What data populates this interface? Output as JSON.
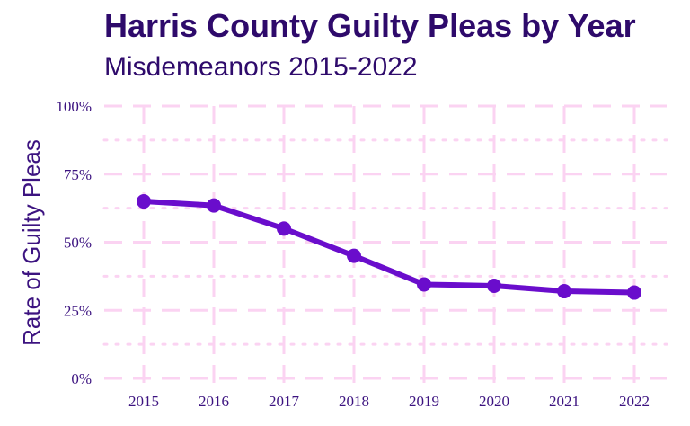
{
  "chart_data": {
    "type": "line",
    "title": "Harris County Guilty Pleas by Year",
    "subtitle": "Misdemeanors 2015-2022",
    "xlabel": "",
    "ylabel": "Rate of Guilty Pleas",
    "x": [
      "2015",
      "2016",
      "2017",
      "2018",
      "2019",
      "2020",
      "2021",
      "2022"
    ],
    "series": [
      {
        "values": [
          0.65,
          0.635,
          0.55,
          0.45,
          0.345,
          0.34,
          0.32,
          0.315
        ]
      }
    ],
    "ylim": [
      0,
      1
    ],
    "yticks": [
      {
        "value": 0,
        "label": "0%"
      },
      {
        "value": 0.25,
        "label": "25%"
      },
      {
        "value": 0.5,
        "label": "50%"
      },
      {
        "value": 0.75,
        "label": "75%"
      },
      {
        "value": 1,
        "label": "100%"
      }
    ],
    "grid": true,
    "legend": "none",
    "colors": {
      "line": "#6a0dcc",
      "grid": "#fbd3f2",
      "text": "#2e0a6b"
    }
  }
}
